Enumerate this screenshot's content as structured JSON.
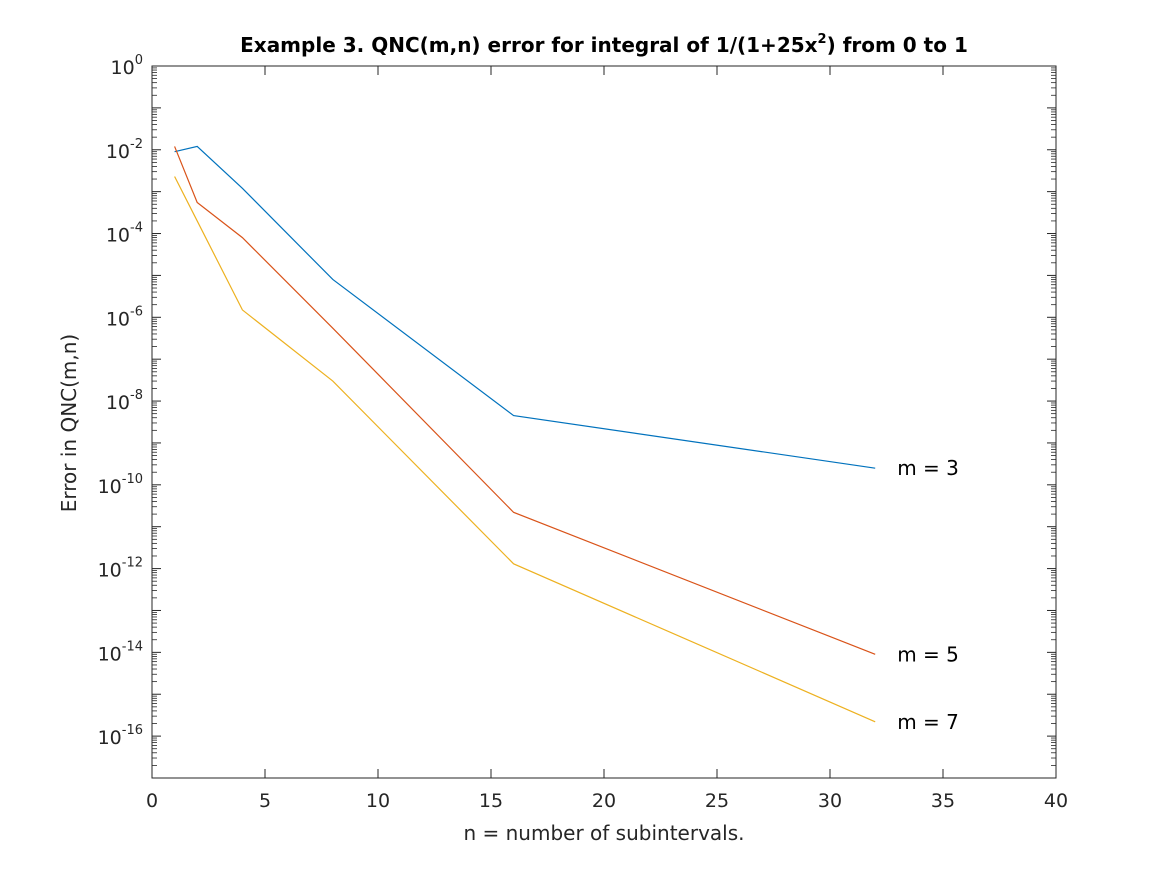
{
  "chart_data": {
    "type": "line",
    "title": {
      "prefix": "Example 3. QNC(m,n) error for integral of 1/(1+25x",
      "superscript": "2",
      "suffix": ") from 0 to 1"
    },
    "xlabel": "n = number of subintervals.",
    "ylabel": "Error in QNC(m,n)",
    "xlim": [
      0,
      40
    ],
    "ylim": [
      1e-17,
      1
    ],
    "yscale": "log",
    "grid": false,
    "xticks": [
      0,
      5,
      10,
      15,
      20,
      25,
      30,
      35,
      40
    ],
    "yticks": [
      {
        "base": "10",
        "exp": "0",
        "value": 1
      },
      {
        "base": "10",
        "exp": "-2",
        "value": 0.01
      },
      {
        "base": "10",
        "exp": "-4",
        "value": 0.0001
      },
      {
        "base": "10",
        "exp": "-6",
        "value": 1e-06
      },
      {
        "base": "10",
        "exp": "-8",
        "value": 1e-08
      },
      {
        "base": "10",
        "exp": "-10",
        "value": 1e-10
      },
      {
        "base": "10",
        "exp": "-12",
        "value": 1e-12
      },
      {
        "base": "10",
        "exp": "-14",
        "value": 1e-14
      },
      {
        "base": "10",
        "exp": "-16",
        "value": 1e-16
      }
    ],
    "series": [
      {
        "label": "m = 3",
        "color": "#0072BD",
        "x": [
          1,
          2,
          4,
          8,
          16,
          32
        ],
        "y": [
          0.009,
          0.012,
          0.0012,
          8e-06,
          4.5e-09,
          2.5e-10
        ]
      },
      {
        "label": "m = 5",
        "color": "#D95319",
        "x": [
          1,
          2,
          4,
          8,
          16,
          32
        ],
        "y": [
          0.012,
          0.00055,
          8e-05,
          5.5e-07,
          2.2e-11,
          9e-15
        ]
      },
      {
        "label": "m = 7",
        "color": "#EDB120",
        "x": [
          1,
          2,
          4,
          8,
          16,
          32
        ],
        "y": [
          0.0023,
          0.0002,
          1.5e-06,
          3e-08,
          1.3e-12,
          2.2e-16
        ]
      }
    ]
  }
}
